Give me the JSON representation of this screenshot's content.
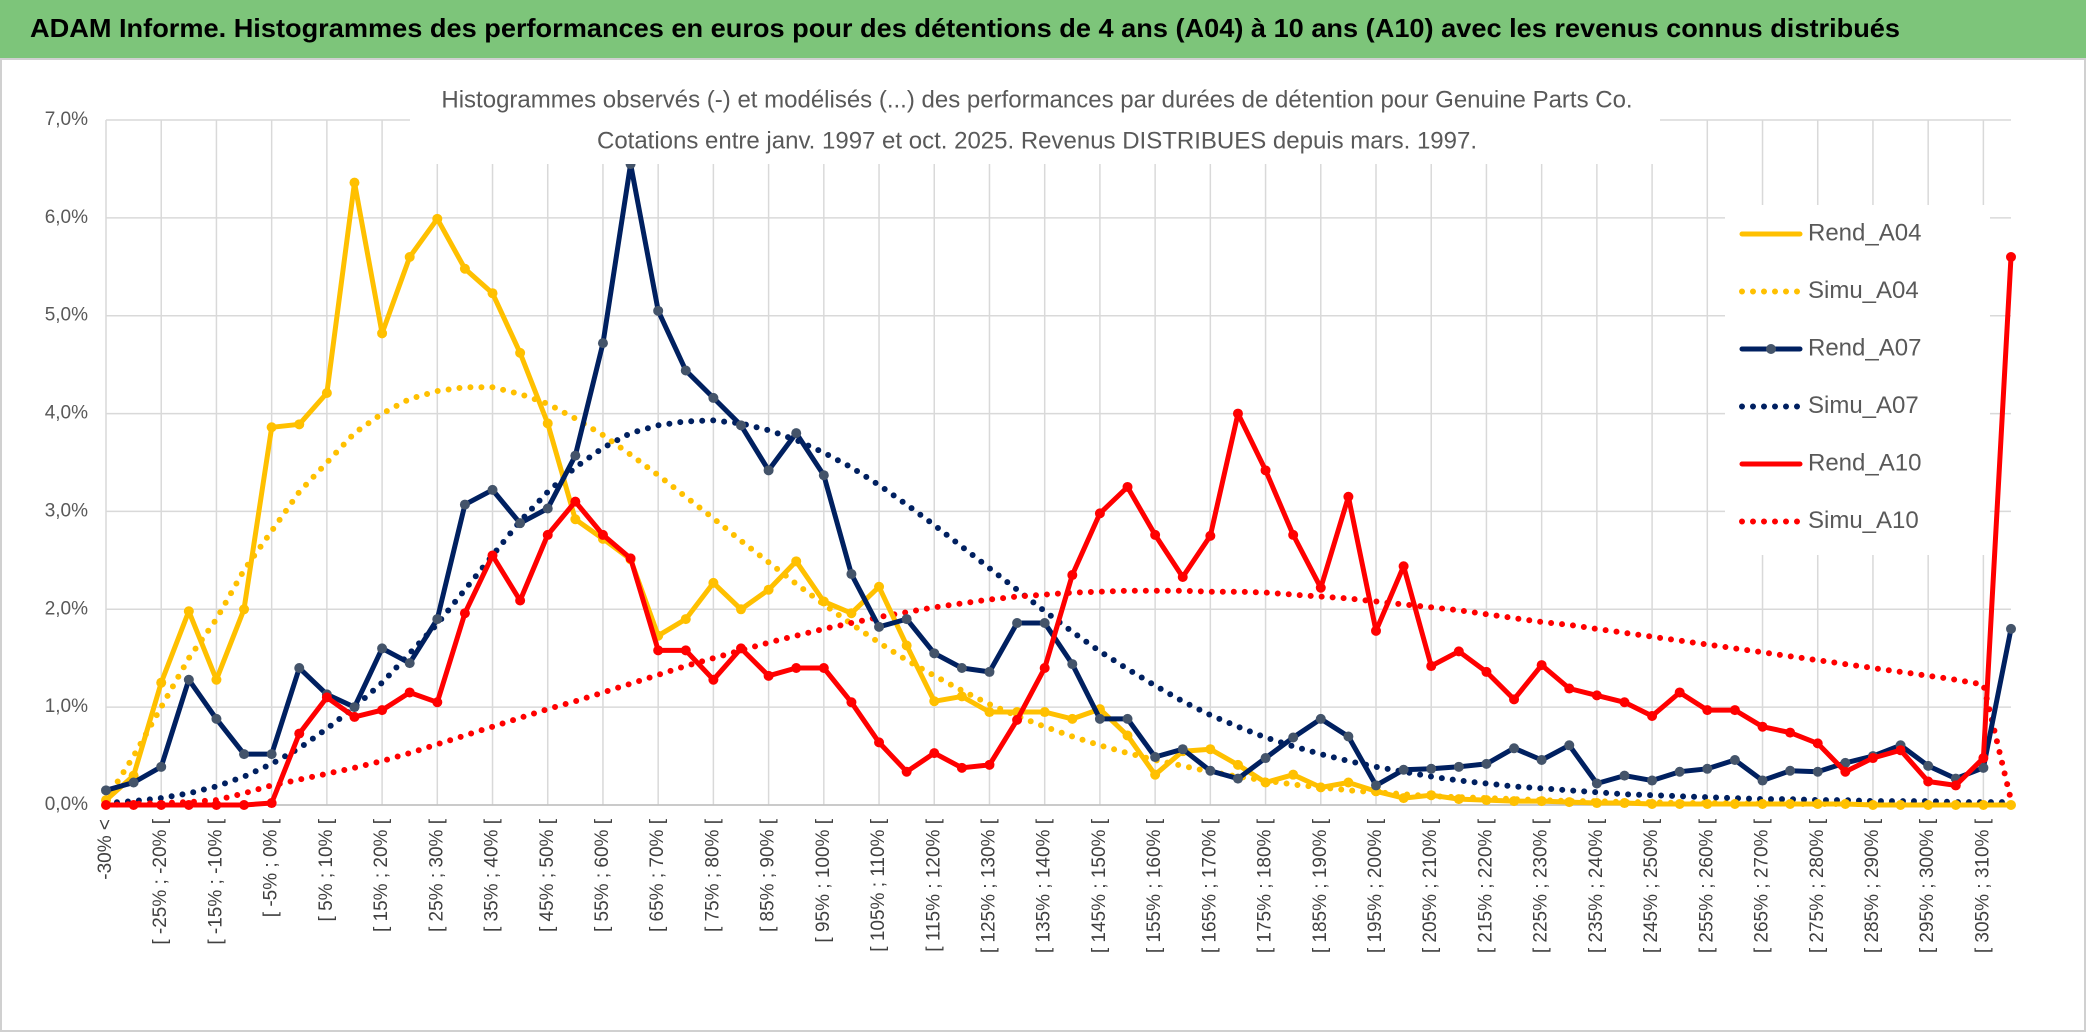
{
  "header": {
    "title": "ADAM Informe. Histogrammes des performances en euros pour des détentions de 4 ans (A04) à 10 ans (A10) avec les revenus connus distribués"
  },
  "chart_data": {
    "type": "line",
    "title": "Histogrammes observés (-) et modélisés (...) des performances par durées de détention pour Genuine Parts Co.",
    "subtitle": "Cotations entre janv. 1997 et oct. 2025. Revenus DISTRIBUES depuis mars. 1997.",
    "categories": [
      "-30% <",
      null,
      "[ -25% ; -20% [",
      null,
      "[ -15% ; -10% [",
      null,
      "[ -5% ; 0% [",
      null,
      "[ 5% ; 10% [",
      null,
      "[ 15% ; 20% [",
      null,
      "[ 25% ; 30% [",
      null,
      "[ 35% ; 40% [",
      null,
      "[ 45% ; 50% [",
      null,
      "[ 55% ; 60% [",
      null,
      "[ 65% ; 70% [",
      null,
      "[ 75% ; 80% [",
      null,
      "[ 85% ; 90% [",
      null,
      "[ 95% ; 100% [",
      null,
      "[ 105% ; 110% [",
      null,
      "[ 115% ; 120% [",
      null,
      "[ 125% ; 130% [",
      null,
      "[ 135% ; 140% [",
      null,
      "[ 145% ; 150% [",
      null,
      "[ 155% ; 160% [",
      null,
      "[ 165% ; 170% [",
      null,
      "[ 175% ; 180% [",
      null,
      "[ 185% ; 190% [",
      null,
      "[ 195% ; 200% [",
      null,
      "[ 205% ; 210% [",
      null,
      "[ 215% ; 220% [",
      null,
      "[ 225% ; 230% [",
      null,
      "[ 235% ; 240% [",
      null,
      "[ 245% ; 250% [",
      null,
      "[ 255% ; 260% [",
      null,
      "[ 265% ; 270% [",
      null,
      "[ 275% ; 280% [",
      null,
      "[ 285% ; 290% [",
      null,
      "[ 295% ; 300% [",
      null,
      "[ 305% ; 310% [",
      null
    ],
    "ylim": [
      0,
      7
    ],
    "yticks": [
      {
        "value": 0,
        "label": "0,0%"
      },
      {
        "value": 1,
        "label": "1,0%"
      },
      {
        "value": 2,
        "label": "2,0%"
      },
      {
        "value": 3,
        "label": "3,0%"
      },
      {
        "value": 4,
        "label": "4,0%"
      },
      {
        "value": 5,
        "label": "5,0%"
      },
      {
        "value": 6,
        "label": "6,0%"
      },
      {
        "value": 7,
        "label": "7,0%"
      }
    ],
    "grid": true,
    "legend": "right",
    "series": [
      {
        "name": "Rend_A04",
        "color": "#ffc000",
        "marker_color": "#ffc000",
        "style": "solid",
        "values": [
          0.05,
          0.3,
          1.25,
          1.98,
          1.28,
          2.0,
          3.86,
          3.89,
          4.21,
          6.36,
          4.82,
          5.6,
          5.99,
          5.48,
          5.23,
          4.62,
          3.9,
          2.92,
          2.72,
          2.51,
          1.73,
          1.9,
          2.27,
          2.0,
          2.2,
          2.49,
          2.08,
          1.96,
          2.23,
          1.63,
          1.06,
          1.11,
          0.95,
          0.95,
          0.95,
          0.88,
          0.98,
          0.71,
          0.31,
          0.55,
          0.57,
          0.41,
          0.23,
          0.31,
          0.18,
          0.23,
          0.14,
          0.07,
          0.1,
          0.06,
          0.05,
          0.04,
          0.04,
          0.03,
          0.02,
          0.02,
          0.01,
          0.01,
          0.01,
          0.01,
          0.01,
          0.01,
          0.01,
          0.01,
          0,
          0,
          0,
          0,
          0,
          0
        ]
      },
      {
        "name": "Simu_A04",
        "color": "#ffc000",
        "style": "dotted",
        "values": [
          0.05,
          0.5,
          1.0,
          1.5,
          1.9,
          2.4,
          2.8,
          3.2,
          3.5,
          3.8,
          4.0,
          4.15,
          4.23,
          4.27,
          4.27,
          4.2,
          4.1,
          3.95,
          3.78,
          3.58,
          3.37,
          3.15,
          2.93,
          2.7,
          2.48,
          2.26,
          2.05,
          1.85,
          1.66,
          1.48,
          1.32,
          1.17,
          1.03,
          0.91,
          0.8,
          0.7,
          0.61,
          0.53,
          0.46,
          0.4,
          0.34,
          0.29,
          0.25,
          0.21,
          0.18,
          0.15,
          0.13,
          0.11,
          0.09,
          0.08,
          0.07,
          0.06,
          0.05,
          0.04,
          0.04,
          0.03,
          0.03,
          0.02,
          0.02,
          0.02,
          0.02,
          0.01,
          0.01,
          0.01,
          0.01,
          0.01,
          0.01,
          0.01,
          0.01,
          0.01
        ]
      },
      {
        "name": "Rend_A07",
        "color": "#002060",
        "marker_color": "#44546a",
        "style": "solid",
        "values": [
          0.15,
          0.23,
          0.39,
          1.28,
          0.88,
          0.52,
          0.52,
          1.4,
          1.13,
          1.0,
          1.6,
          1.45,
          1.9,
          3.07,
          3.22,
          2.88,
          3.03,
          3.57,
          4.72,
          6.55,
          5.05,
          4.44,
          4.16,
          3.88,
          3.42,
          3.8,
          3.37,
          2.36,
          1.82,
          1.9,
          1.55,
          1.4,
          1.36,
          1.86,
          1.86,
          1.44,
          0.88,
          0.88,
          0.49,
          0.57,
          0.35,
          0.27,
          0.48,
          0.69,
          0.88,
          0.7,
          0.2,
          0.36,
          0.37,
          0.39,
          0.42,
          0.58,
          0.46,
          0.61,
          0.22,
          0.3,
          0.25,
          0.34,
          0.37,
          0.46,
          0.25,
          0.35,
          0.34,
          0.43,
          0.5,
          0.61,
          0.4,
          0.27,
          0.38,
          1.8
        ]
      },
      {
        "name": "Simu_A07",
        "color": "#002060",
        "style": "dotted",
        "values": [
          0.02,
          0.04,
          0.07,
          0.12,
          0.19,
          0.29,
          0.42,
          0.58,
          0.78,
          1.0,
          1.25,
          1.55,
          1.85,
          2.2,
          2.55,
          2.9,
          3.2,
          3.45,
          3.65,
          3.8,
          3.88,
          3.92,
          3.93,
          3.9,
          3.83,
          3.73,
          3.6,
          3.45,
          3.27,
          3.07,
          2.86,
          2.64,
          2.42,
          2.2,
          1.98,
          1.77,
          1.57,
          1.39,
          1.22,
          1.06,
          0.92,
          0.8,
          0.69,
          0.6,
          0.52,
          0.45,
          0.39,
          0.34,
          0.29,
          0.25,
          0.22,
          0.19,
          0.17,
          0.15,
          0.13,
          0.11,
          0.1,
          0.09,
          0.08,
          0.07,
          0.06,
          0.06,
          0.05,
          0.05,
          0.04,
          0.04,
          0.04,
          0.03,
          0.03,
          0.03
        ]
      },
      {
        "name": "Rend_A10",
        "color": "#ff0000",
        "marker_color": "#ff0000",
        "style": "solid",
        "values": [
          0,
          0,
          0,
          0,
          0,
          0,
          0.02,
          0.73,
          1.1,
          0.9,
          0.97,
          1.15,
          1.05,
          1.96,
          2.55,
          2.09,
          2.76,
          3.1,
          2.76,
          2.52,
          1.58,
          1.58,
          1.28,
          1.6,
          1.32,
          1.4,
          1.4,
          1.05,
          0.64,
          0.34,
          0.53,
          0.38,
          0.41,
          0.87,
          1.4,
          2.35,
          2.98,
          3.25,
          2.76,
          2.33,
          2.75,
          4.0,
          3.42,
          2.76,
          2.22,
          3.15,
          1.78,
          2.44,
          1.42,
          1.57,
          1.36,
          1.08,
          1.43,
          1.19,
          1.12,
          1.05,
          0.91,
          1.15,
          0.97,
          0.97,
          0.8,
          0.74,
          0.63,
          0.34,
          0.48,
          0.56,
          0.24,
          0.2,
          0.48,
          5.6
        ]
      },
      {
        "name": "Simu_A10",
        "color": "#ff0000",
        "style": "dotted",
        "values": [
          0,
          0.01,
          0.02,
          0.03,
          0.05,
          0.12,
          0.2,
          0.26,
          0.32,
          0.38,
          0.45,
          0.53,
          0.62,
          0.71,
          0.8,
          0.89,
          0.98,
          1.06,
          1.15,
          1.24,
          1.33,
          1.42,
          1.5,
          1.58,
          1.66,
          1.73,
          1.8,
          1.86,
          1.92,
          1.97,
          2.02,
          2.06,
          2.1,
          2.13,
          2.15,
          2.17,
          2.18,
          2.19,
          2.19,
          2.19,
          2.18,
          2.18,
          2.17,
          2.15,
          2.13,
          2.11,
          2.08,
          2.05,
          2.02,
          1.99,
          1.95,
          1.91,
          1.87,
          1.84,
          1.8,
          1.76,
          1.72,
          1.68,
          1.64,
          1.6,
          1.56,
          1.52,
          1.48,
          1.44,
          1.4,
          1.36,
          1.32,
          1.28,
          1.23,
          0.05
        ]
      }
    ]
  }
}
